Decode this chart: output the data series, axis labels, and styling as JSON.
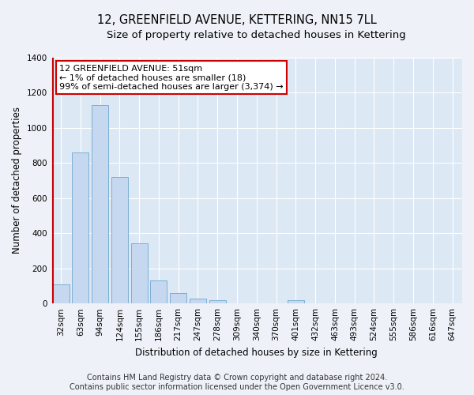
{
  "title": "12, GREENFIELD AVENUE, KETTERING, NN15 7LL",
  "subtitle": "Size of property relative to detached houses in Kettering",
  "xlabel": "Distribution of detached houses by size in Kettering",
  "ylabel": "Number of detached properties",
  "categories": [
    "32sqm",
    "63sqm",
    "94sqm",
    "124sqm",
    "155sqm",
    "186sqm",
    "217sqm",
    "247sqm",
    "278sqm",
    "309sqm",
    "340sqm",
    "370sqm",
    "401sqm",
    "432sqm",
    "463sqm",
    "493sqm",
    "524sqm",
    "555sqm",
    "586sqm",
    "616sqm",
    "647sqm"
  ],
  "values": [
    107,
    860,
    1130,
    720,
    340,
    130,
    60,
    30,
    20,
    0,
    0,
    0,
    17,
    0,
    0,
    0,
    0,
    0,
    0,
    0,
    0
  ],
  "bar_color": "#c5d8f0",
  "bar_edge_color": "#7bafd4",
  "highlight_color": "#cc0000",
  "annotation_text": "12 GREENFIELD AVENUE: 51sqm\n← 1% of detached houses are smaller (18)\n99% of semi-detached houses are larger (3,374) →",
  "annotation_box_color": "#ffffff",
  "annotation_box_edge_color": "#cc0000",
  "ylim": [
    0,
    1400
  ],
  "yticks": [
    0,
    200,
    400,
    600,
    800,
    1000,
    1200,
    1400
  ],
  "footer_line1": "Contains HM Land Registry data © Crown copyright and database right 2024.",
  "footer_line2": "Contains public sector information licensed under the Open Government Licence v3.0.",
  "bg_color": "#eef2f8",
  "plot_bg_color": "#dde8f5",
  "grid_color": "#ffffff",
  "title_fontsize": 10.5,
  "subtitle_fontsize": 9.5,
  "axis_label_fontsize": 8.5,
  "tick_fontsize": 7.5,
  "annotation_fontsize": 8,
  "footer_fontsize": 7
}
